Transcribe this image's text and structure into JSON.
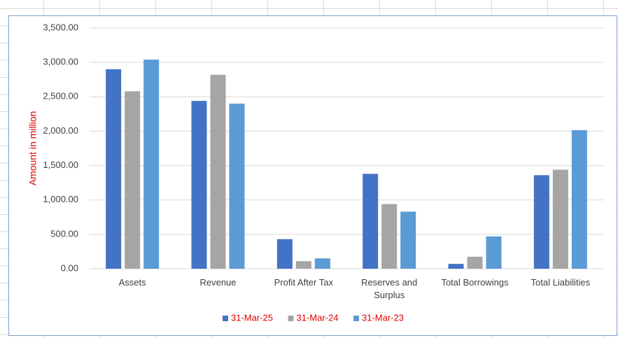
{
  "chart_data": {
    "type": "bar",
    "y_axis_title": "Amount in million",
    "categories": [
      "Assets",
      "Revenue",
      "Profit After Tax",
      "Reserves and Surplus",
      "Total Borrowings",
      "Total Liabilities"
    ],
    "series": [
      {
        "name": "31-Mar-25",
        "color": "#4472c4",
        "values": [
          2900,
          2440,
          430,
          1380,
          70,
          1360
        ]
      },
      {
        "name": "31-Mar-24",
        "color": "#a5a5a5",
        "values": [
          2580,
          2820,
          110,
          940,
          175,
          1440
        ]
      },
      {
        "name": "31-Mar-23",
        "color": "#5b9bd5",
        "values": [
          3040,
          2400,
          150,
          830,
          470,
          2015
        ]
      }
    ],
    "ylim": [
      0,
      3500
    ],
    "yticks": [
      {
        "value": 0,
        "label": "0.00"
      },
      {
        "value": 500,
        "label": "500.00"
      },
      {
        "value": 1000,
        "label": "1,000.00"
      },
      {
        "value": 1500,
        "label": "1,500.00"
      },
      {
        "value": 2000,
        "label": "2,000.00"
      },
      {
        "value": 2500,
        "label": "2,500.00"
      },
      {
        "value": 3000,
        "label": "3,000.00"
      },
      {
        "value": 3500,
        "label": "3,500.00"
      }
    ],
    "grid": true,
    "legend": "bottom",
    "legend_text_color": "#e00000",
    "axis_title_color": "#e00000"
  }
}
